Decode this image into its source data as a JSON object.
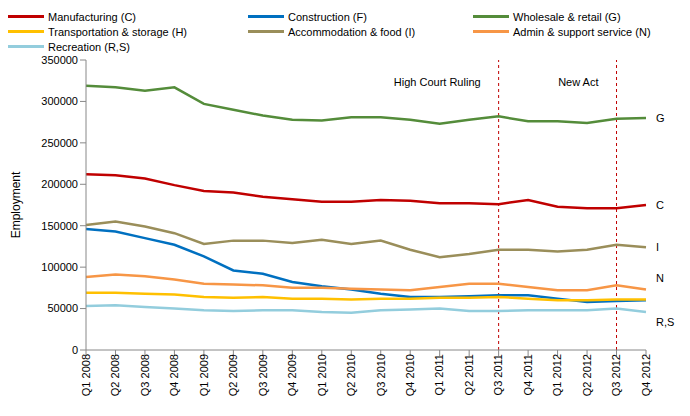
{
  "chart_data": {
    "type": "line",
    "y_label": "Employment",
    "categories": [
      "Q1 2008",
      "Q2 2008",
      "Q3 2008",
      "Q4 2008",
      "Q1 2009",
      "Q2 2009",
      "Q3 2009",
      "Q4 2009",
      "Q1 2010",
      "Q2 2010",
      "Q3 2010",
      "Q4 2010",
      "Q1 2011",
      "Q2 2011",
      "Q3 2011",
      "Q4 2011",
      "Q1 2012",
      "Q2 2012",
      "Q3 2012",
      "Q4 2012"
    ],
    "series": [
      {
        "name": "Manufacturing (C)",
        "end_label": "C",
        "color": "#c00000",
        "values": [
          212000,
          211000,
          207000,
          199000,
          192000,
          190000,
          185000,
          182000,
          179000,
          179000,
          181000,
          180000,
          177000,
          177000,
          176000,
          181000,
          173000,
          171000,
          171000,
          175000
        ]
      },
      {
        "name": "Construction (F)",
        "end_label": null,
        "color": "#0070c0",
        "values": [
          146000,
          143000,
          135000,
          127000,
          113000,
          96000,
          92000,
          82000,
          77000,
          73000,
          68000,
          64000,
          64000,
          65000,
          66000,
          66000,
          62000,
          58000,
          59000,
          60000
        ]
      },
      {
        "name": "Wholesale & retail (G)",
        "end_label": "G",
        "color": "#548c3a",
        "values": [
          319000,
          317000,
          313000,
          317000,
          297000,
          290000,
          283000,
          278000,
          277000,
          281000,
          281000,
          278000,
          273000,
          278000,
          282000,
          276000,
          276000,
          274000,
          279000,
          280000
        ]
      },
      {
        "name": "Transportation & storage (H)",
        "end_label": null,
        "color": "#ffc000",
        "values": [
          69000,
          69000,
          68000,
          67000,
          64000,
          63000,
          64000,
          62000,
          62000,
          61000,
          62000,
          62000,
          63000,
          63000,
          64000,
          62000,
          60000,
          60000,
          61000,
          61000
        ]
      },
      {
        "name": "Accommodation & food (I)",
        "end_label": "I",
        "color": "#9a8e5a",
        "values": [
          151000,
          155000,
          149000,
          141000,
          128000,
          132000,
          132000,
          129000,
          133000,
          128000,
          132000,
          121000,
          112000,
          116000,
          121000,
          121000,
          119000,
          121000,
          127000,
          124000
        ]
      },
      {
        "name": "Admin & support service (N)",
        "end_label": "N",
        "color": "#f79646",
        "values": [
          88000,
          91000,
          89000,
          85000,
          80000,
          79000,
          78000,
          75000,
          75000,
          74000,
          73000,
          72000,
          76000,
          80000,
          80000,
          76000,
          72000,
          72000,
          78000,
          73000
        ]
      },
      {
        "name": "Recreation (R,S)",
        "end_label": "R,S",
        "color": "#93cddd",
        "values": [
          53000,
          54000,
          52000,
          50000,
          48000,
          47000,
          48000,
          48000,
          46000,
          45000,
          48000,
          49000,
          50000,
          47000,
          47000,
          48000,
          48000,
          48000,
          50000,
          46000
        ]
      }
    ],
    "annotations": [
      {
        "text": "High Court Ruling",
        "x": "Q3 2011",
        "color": "#c00000",
        "line_style": "dashed"
      },
      {
        "text": "New Act",
        "x": "Q3 2012",
        "color": "#c00000",
        "line_style": "dashed"
      }
    ],
    "ylim": [
      0,
      350000
    ],
    "yticks": [
      0,
      50000,
      100000,
      150000,
      200000,
      250000,
      300000,
      350000
    ],
    "grid": false
  }
}
